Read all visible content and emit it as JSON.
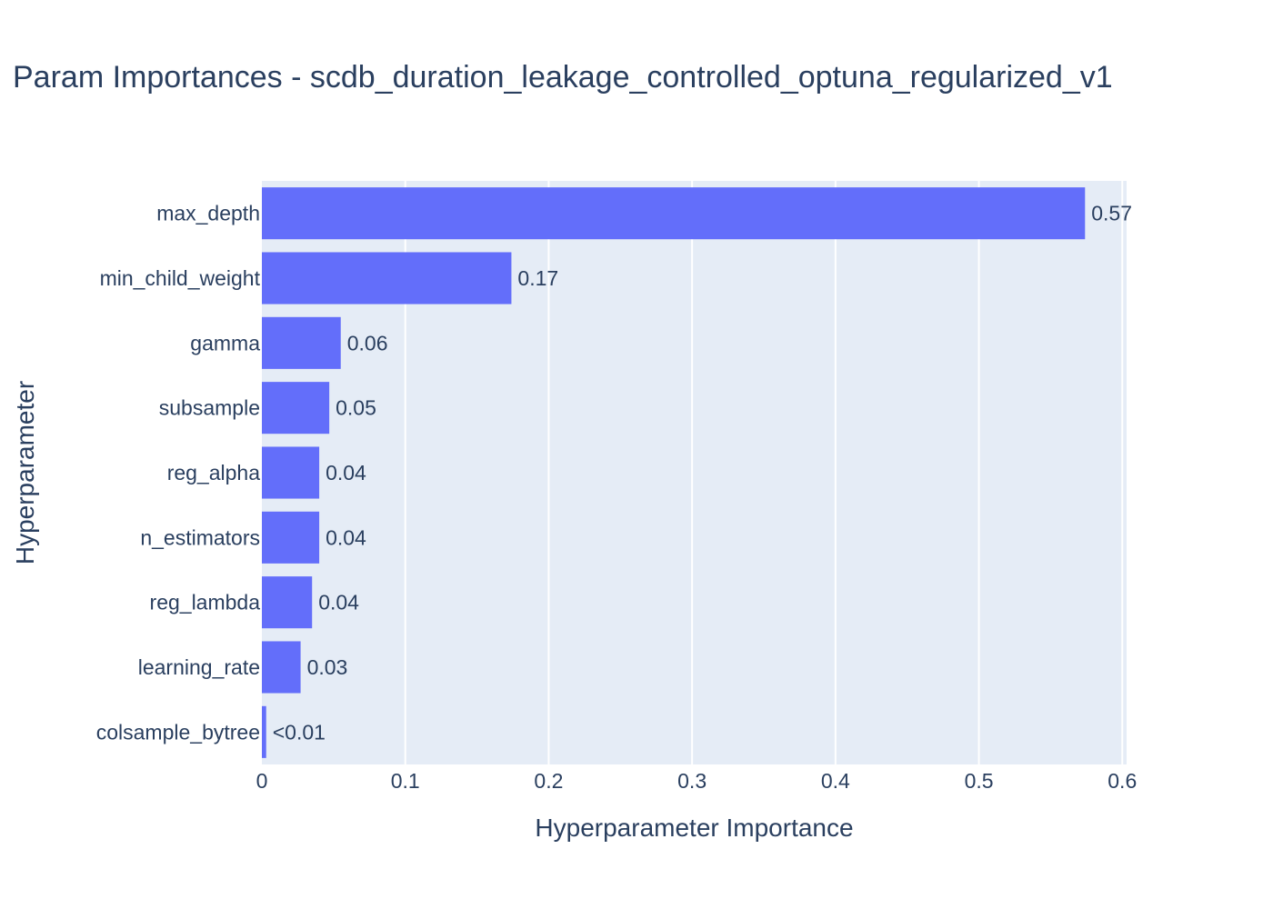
{
  "chart_data": {
    "type": "bar",
    "orientation": "horizontal",
    "title": "Param Importances - scdb_duration_leakage_controlled_optuna_regularized_v1",
    "xlabel": "Hyperparameter Importance",
    "ylabel": "Hyperparameter",
    "xlim": [
      0,
      0.603
    ],
    "x_ticks": [
      0,
      0.1,
      0.2,
      0.3,
      0.4,
      0.5,
      0.6
    ],
    "x_tick_labels": [
      "0",
      "0.1",
      "0.2",
      "0.3",
      "0.4",
      "0.5",
      "0.6"
    ],
    "grid": true,
    "bar_color": "#636efa",
    "plot_bg": "#e5ecf6",
    "categories": [
      "max_depth",
      "min_child_weight",
      "gamma",
      "subsample",
      "reg_alpha",
      "n_estimators",
      "reg_lambda",
      "learning_rate",
      "colsample_bytree"
    ],
    "values": [
      0.574,
      0.174,
      0.055,
      0.047,
      0.04,
      0.04,
      0.035,
      0.027,
      0.003
    ],
    "labels": [
      "0.57",
      "0.17",
      "0.06",
      "0.05",
      "0.04",
      "0.04",
      "0.04",
      "0.03",
      "<0.01"
    ]
  }
}
